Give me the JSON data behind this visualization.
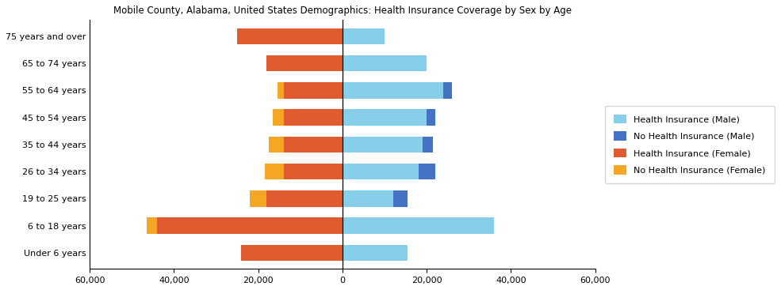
{
  "title": "Mobile County, Alabama, United States Demographics: Health Insurance Coverage by Sex by Age",
  "age_groups": [
    "Under 6 years",
    "6 to 18 years",
    "19 to 25 years",
    "26 to 34 years",
    "35 to 44 years",
    "45 to 54 years",
    "55 to 64 years",
    "65 to 74 years",
    "75 years and over"
  ],
  "male_health_ins": [
    15500,
    36000,
    12000,
    18000,
    19000,
    20000,
    24000,
    20000,
    10000
  ],
  "male_no_health_ins": [
    0,
    0,
    3500,
    4000,
    2500,
    2000,
    2000,
    0,
    0
  ],
  "female_health_ins": [
    24000,
    44000,
    18000,
    14000,
    14000,
    14000,
    14000,
    18000,
    25000
  ],
  "female_no_health_ins": [
    0,
    2500,
    4000,
    4500,
    3500,
    2500,
    1500,
    0,
    0
  ],
  "colors": {
    "male_health_ins": "#87CEEB",
    "male_no_health_ins": "#4472C4",
    "female_health_ins": "#E05C30",
    "female_no_health_ins": "#F5A623"
  },
  "xlim": 60000,
  "background_color": "#ffffff",
  "legend_labels": [
    "Health Insurance (Male)",
    "No Health Insurance (Male)",
    "Health Insurance (Female)",
    "No Health Insurance (Female)"
  ]
}
